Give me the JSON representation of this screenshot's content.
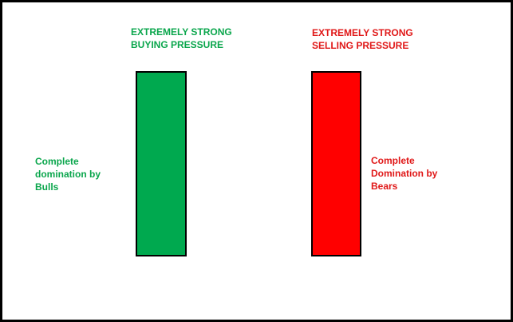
{
  "bullish": {
    "title": "EXTREMELY STRONG\nBUYING PRESSURE",
    "note": "Complete\ndomination by\nBulls",
    "text_color": "#0aa64c",
    "candle_color": "#00a94f"
  },
  "bearish": {
    "title": "EXTREMELY STRONG\nSELLING PRESSURE",
    "note": "Complete\nDomination by\nBears",
    "text_color": "#e01818",
    "candle_color": "#ff0000"
  },
  "border_color": "#000000"
}
